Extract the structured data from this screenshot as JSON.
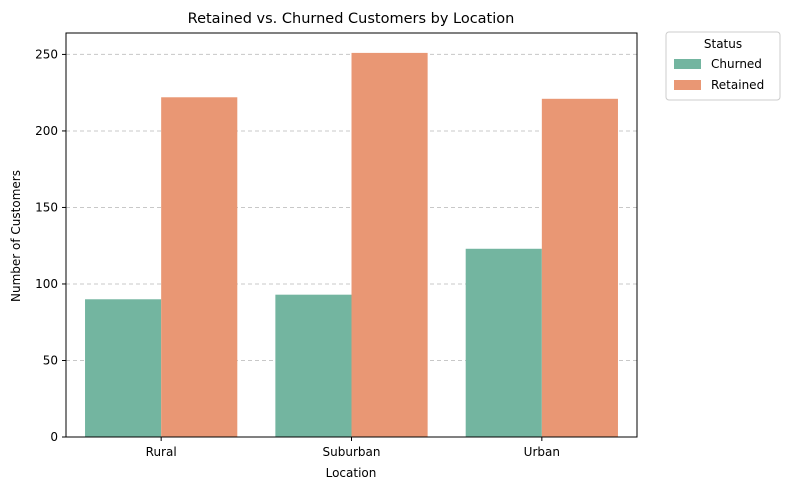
{
  "chart_data": {
    "type": "bar",
    "title": "Retained vs. Churned Customers by Location",
    "xlabel": "Location",
    "ylabel": "Number of Customers",
    "categories": [
      "Rural",
      "Suburban",
      "Urban"
    ],
    "series": [
      {
        "name": "Churned",
        "values": [
          90,
          93,
          123
        ],
        "color": "#73b5a0"
      },
      {
        "name": "Retained",
        "values": [
          222,
          251,
          221
        ],
        "color": "#e99774"
      }
    ],
    "ylim": [
      0,
      264
    ],
    "yticks": [
      0,
      50,
      100,
      150,
      200,
      250
    ],
    "grid": "horizontal dashed",
    "legend": {
      "title": "Status",
      "placement": "outside upper-right"
    }
  }
}
